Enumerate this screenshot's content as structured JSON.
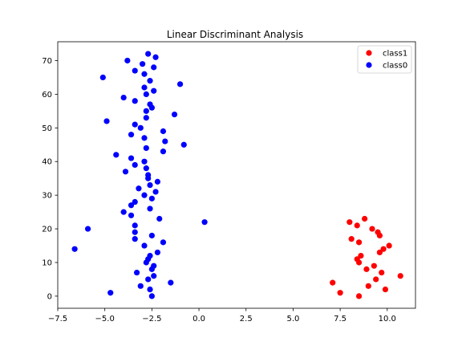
{
  "chart_data": {
    "type": "scatter",
    "title": "Linear Discriminant Analysis",
    "xlabel": "",
    "ylabel": "",
    "xlim": [
      -7.5,
      11.5
    ],
    "ylim": [
      -3.6,
      75.6
    ],
    "x_ticks": [
      -7.5,
      -5.0,
      -2.5,
      0.0,
      2.5,
      5.0,
      7.5,
      10.0
    ],
    "x_tick_labels": [
      "−7.5",
      "−5.0",
      "−2.5",
      "0.0",
      "2.5",
      "5.0",
      "7.5",
      "10.0"
    ],
    "y_ticks": [
      0,
      10,
      20,
      30,
      40,
      50,
      60,
      70
    ],
    "y_tick_labels": [
      "0",
      "10",
      "20",
      "30",
      "40",
      "50",
      "60",
      "70"
    ],
    "grid": false,
    "legend": {
      "position": "top-right",
      "entries": [
        "class1",
        "class0"
      ]
    },
    "series": [
      {
        "name": "class1",
        "color": "#ff0000",
        "marker": "circle",
        "points": [
          [
            8.0,
            22.0
          ],
          [
            8.4,
            21.0
          ],
          [
            8.8,
            23.0
          ],
          [
            9.2,
            20.0
          ],
          [
            9.5,
            19.0
          ],
          [
            9.6,
            18.0
          ],
          [
            8.1,
            17.0
          ],
          [
            8.5,
            16.0
          ],
          [
            10.1,
            15.0
          ],
          [
            9.8,
            14.0
          ],
          [
            9.6,
            13.0
          ],
          [
            8.6,
            12.0
          ],
          [
            8.4,
            11.0
          ],
          [
            8.5,
            10.0
          ],
          [
            9.3,
            9.0
          ],
          [
            8.9,
            8.0
          ],
          [
            9.7,
            7.0
          ],
          [
            10.7,
            6.0
          ],
          [
            9.4,
            5.0
          ],
          [
            7.1,
            4.0
          ],
          [
            9.0,
            3.0
          ],
          [
            9.9,
            2.0
          ],
          [
            7.5,
            1.0
          ],
          [
            8.5,
            0.0
          ]
        ]
      },
      {
        "name": "class0",
        "color": "#0000ff",
        "marker": "circle",
        "points": [
          [
            -2.7,
            72.0
          ],
          [
            -2.3,
            71.0
          ],
          [
            -3.8,
            70.0
          ],
          [
            -3.0,
            69.0
          ],
          [
            -2.4,
            68.0
          ],
          [
            -3.4,
            67.0
          ],
          [
            -2.9,
            66.0
          ],
          [
            -5.1,
            65.0
          ],
          [
            -2.6,
            64.0
          ],
          [
            -1.0,
            63.0
          ],
          [
            -2.9,
            62.0
          ],
          [
            -2.4,
            61.0
          ],
          [
            -2.8,
            60.0
          ],
          [
            -4.0,
            59.0
          ],
          [
            -3.4,
            58.0
          ],
          [
            -2.6,
            57.0
          ],
          [
            -2.5,
            56.0
          ],
          [
            -2.8,
            55.0
          ],
          [
            -1.3,
            54.0
          ],
          [
            -2.8,
            53.0
          ],
          [
            -4.9,
            52.0
          ],
          [
            -3.4,
            51.0
          ],
          [
            -3.1,
            50.0
          ],
          [
            -1.9,
            49.0
          ],
          [
            -3.6,
            48.0
          ],
          [
            -2.9,
            47.0
          ],
          [
            -1.8,
            46.0
          ],
          [
            -0.8,
            45.0
          ],
          [
            -2.8,
            44.0
          ],
          [
            -1.9,
            43.0
          ],
          [
            -4.4,
            42.0
          ],
          [
            -3.6,
            41.0
          ],
          [
            -2.9,
            40.0
          ],
          [
            -3.4,
            39.0
          ],
          [
            -2.8,
            38.0
          ],
          [
            -3.9,
            37.0
          ],
          [
            -2.7,
            36.0
          ],
          [
            -2.7,
            35.0
          ],
          [
            -2.2,
            34.0
          ],
          [
            -2.6,
            33.0
          ],
          [
            -3.2,
            32.0
          ],
          [
            -2.3,
            31.0
          ],
          [
            -2.9,
            30.0
          ],
          [
            -2.5,
            29.0
          ],
          [
            -3.4,
            28.0
          ],
          [
            -3.6,
            27.0
          ],
          [
            -2.6,
            26.0
          ],
          [
            -4.0,
            25.0
          ],
          [
            -3.6,
            24.0
          ],
          [
            -2.1,
            23.0
          ],
          [
            0.3,
            22.0
          ],
          [
            -3.4,
            21.0
          ],
          [
            -5.9,
            20.0
          ],
          [
            -3.4,
            19.0
          ],
          [
            -2.5,
            18.0
          ],
          [
            -3.4,
            17.0
          ],
          [
            -1.9,
            16.0
          ],
          [
            -2.9,
            15.0
          ],
          [
            -6.6,
            14.0
          ],
          [
            -2.2,
            13.0
          ],
          [
            -2.6,
            12.0
          ],
          [
            -2.7,
            11.0
          ],
          [
            -2.8,
            10.0
          ],
          [
            -2.4,
            9.0
          ],
          [
            -2.5,
            8.0
          ],
          [
            -3.3,
            7.0
          ],
          [
            -2.4,
            6.0
          ],
          [
            -2.7,
            5.0
          ],
          [
            -1.5,
            4.0
          ],
          [
            -3.1,
            3.0
          ],
          [
            -2.6,
            2.0
          ],
          [
            -4.7,
            1.0
          ],
          [
            -2.5,
            0.0
          ]
        ]
      }
    ]
  }
}
